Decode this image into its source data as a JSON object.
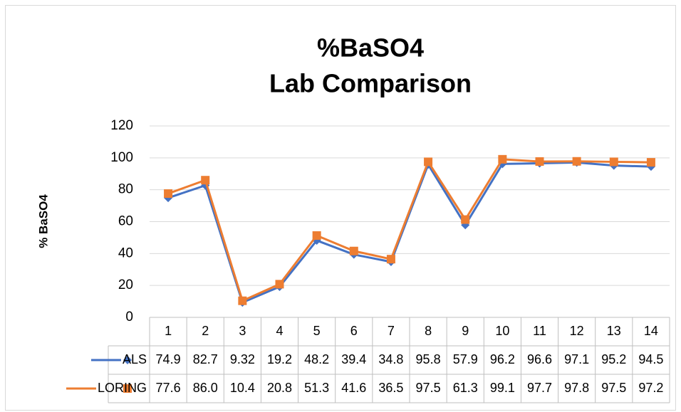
{
  "chart_data": {
    "type": "line",
    "title": "%BaSO4",
    "subtitle": "Lab Comparison",
    "y_label": "% BaSO4",
    "categories": [
      "1",
      "2",
      "3",
      "4",
      "5",
      "6",
      "7",
      "8",
      "9",
      "10",
      "11",
      "12",
      "13",
      "14"
    ],
    "series": [
      {
        "name": "ALS",
        "color": "#4472c4",
        "marker": "diamond",
        "values": [
          74.9,
          82.7,
          9.32,
          19.2,
          48.2,
          39.4,
          34.8,
          95.8,
          57.9,
          96.2,
          96.6,
          97.1,
          95.2,
          94.5
        ]
      },
      {
        "name": "LORING",
        "color": "#ed7d31",
        "marker": "square",
        "values": [
          77.6,
          86.0,
          10.4,
          20.8,
          51.3,
          41.6,
          36.5,
          97.5,
          61.3,
          99.1,
          97.7,
          97.8,
          97.5,
          97.2
        ],
        "value_labels": [
          "77.6",
          "86.0",
          "10.4",
          "20.8",
          "51.3",
          "41.6",
          "36.5",
          "97.5",
          "61.3",
          "99.1",
          "97.7",
          "97.8",
          "97.5",
          "97.2"
        ]
      }
    ],
    "ylim": [
      0,
      120
    ],
    "yticks": [
      0,
      20,
      40,
      60,
      80,
      100,
      120
    ],
    "grid": true,
    "data_table": true
  }
}
